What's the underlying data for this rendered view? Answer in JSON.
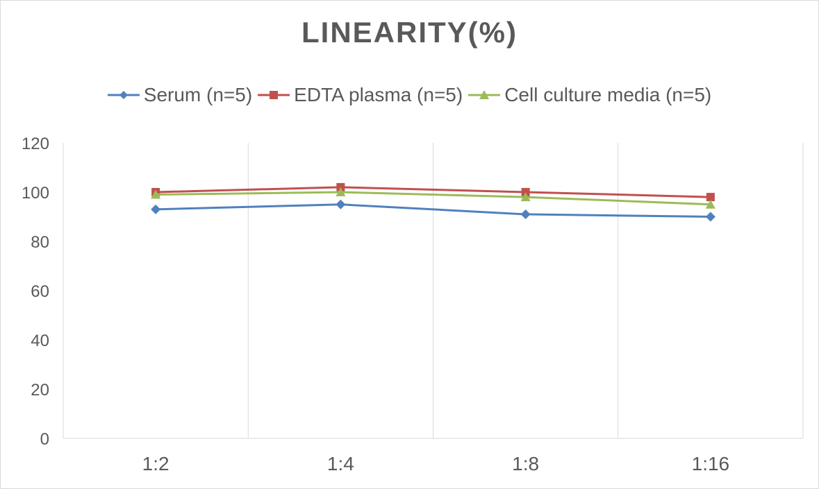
{
  "chart_data": {
    "type": "line",
    "title": "LINEARITY(%)",
    "categories": [
      "1:2",
      "1:4",
      "1:8",
      "1:16"
    ],
    "series": [
      {
        "name": "Serum (n=5)",
        "values": [
          93,
          95,
          91,
          90
        ],
        "color": "#4f81bd",
        "marker": "diamond"
      },
      {
        "name": "EDTA plasma (n=5)",
        "values": [
          100,
          102,
          100,
          98
        ],
        "color": "#c0504d",
        "marker": "square"
      },
      {
        "name": "Cell culture media (n=5)",
        "values": [
          99,
          100,
          98,
          95
        ],
        "color": "#9bbb59",
        "marker": "triangle"
      }
    ],
    "ylim": [
      0,
      120
    ],
    "yticks": [
      0,
      20,
      40,
      60,
      80,
      100,
      120
    ],
    "grid": "vertical",
    "legend_position": "top"
  }
}
